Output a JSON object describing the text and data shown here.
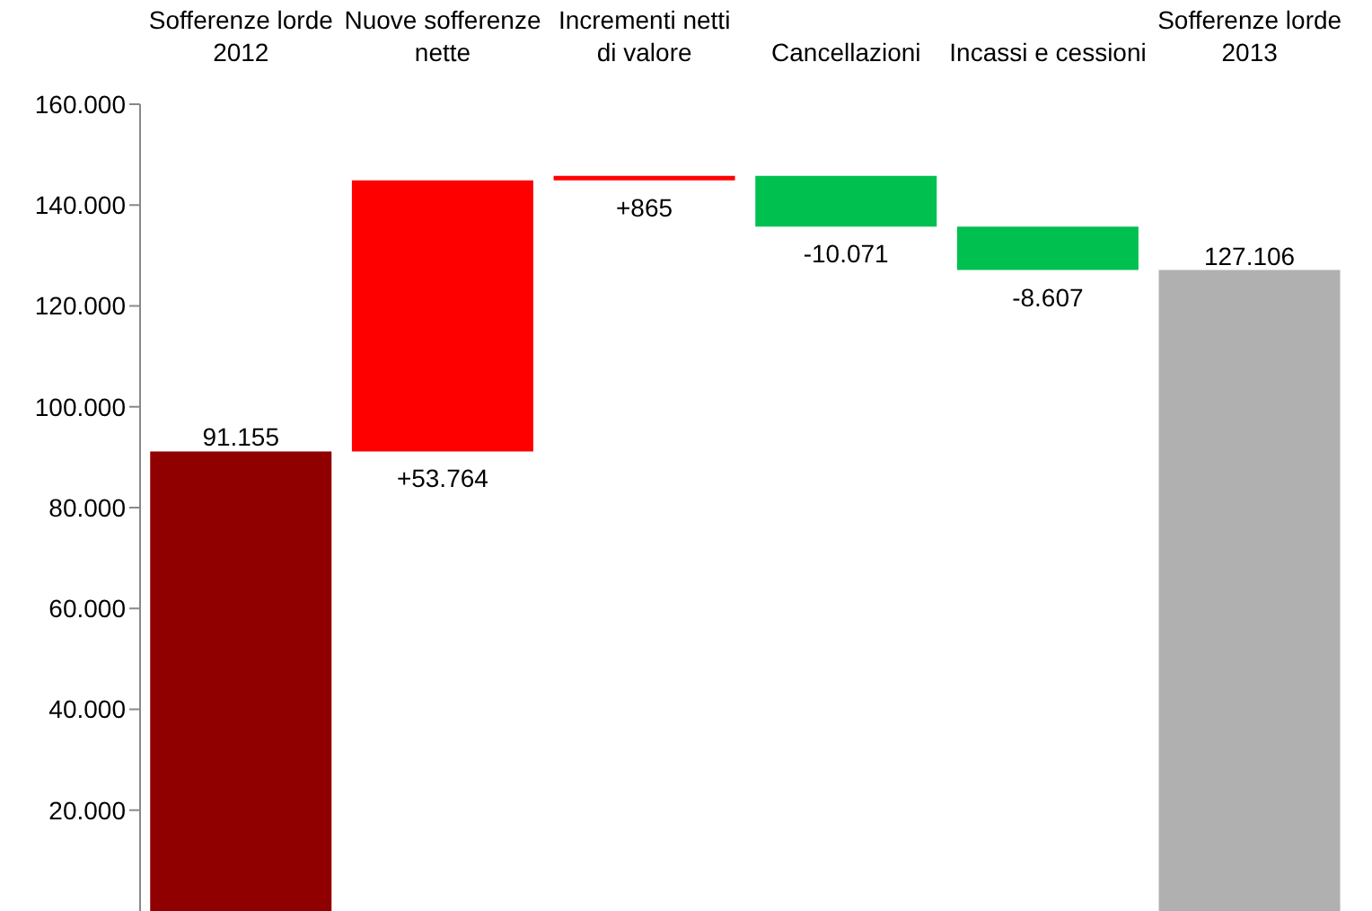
{
  "chart_data": {
    "type": "bar",
    "categories": [
      "Sofferenze lorde 2012",
      "Nuove sofferenze nette",
      "Incrementi netti di valore",
      "Cancellazioni",
      "Incassi e cessioni",
      "Sofferenze lorde 2013"
    ],
    "values": [
      91155,
      53764,
      865,
      -10071,
      -8607,
      127106
    ],
    "base": [
      0,
      91155,
      144919,
      145784,
      135713,
      0
    ],
    "colors": [
      "#910000",
      "#ff0000",
      "#ff0000",
      "#00c050",
      "#00c050",
      "#b0b0b0"
    ],
    "value_labels": [
      "91.155",
      "+53.764",
      "+865",
      "-10.071",
      "-8.607",
      "127.106"
    ],
    "ylim": [
      0,
      160000
    ],
    "yticks": [
      {
        "value": 20000,
        "label": "20.000"
      },
      {
        "value": 40000,
        "label": "40.000"
      },
      {
        "value": 60000,
        "label": "60.000"
      },
      {
        "value": 80000,
        "label": "80.000"
      },
      {
        "value": 100000,
        "label": "100.000"
      },
      {
        "value": 120000,
        "label": "120.000"
      },
      {
        "value": 140000,
        "label": "140.000"
      },
      {
        "value": 160000,
        "label": "160.000"
      }
    ],
    "grid": false
  }
}
